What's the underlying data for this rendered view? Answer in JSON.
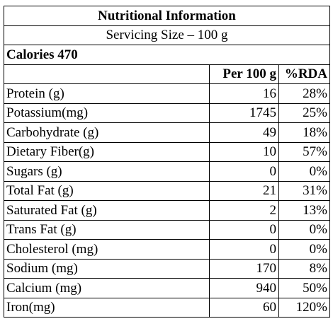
{
  "title": "Nutritional Information",
  "serving": "Servicing Size – 100 g",
  "calories": "Calories 470",
  "headers": {
    "per100g": "Per 100 g",
    "rda": "%RDA"
  },
  "rows": [
    {
      "name": "Protein (g)",
      "per100g": "16",
      "rda": "28%"
    },
    {
      "name": "Potassium(mg)",
      "per100g": "1745",
      "rda": "25%"
    },
    {
      "name": "Carbohydrate (g)",
      "per100g": "49",
      "rda": "18%"
    },
    {
      "name": "Dietary Fiber(g)",
      "per100g": "10",
      "rda": "57%"
    },
    {
      "name": "Sugars (g)",
      "per100g": "0",
      "rda": "0%"
    },
    {
      "name": "Total Fat (g)",
      "per100g": "21",
      "rda": "31%"
    },
    {
      "name": "Saturated Fat (g)",
      "per100g": "2",
      "rda": "13%"
    },
    {
      "name": "Trans Fat (g)",
      "per100g": "0",
      "rda": "0%"
    },
    {
      "name": "Cholesterol (mg)",
      "per100g": "0",
      "rda": "0%"
    },
    {
      "name": "Sodium (mg)",
      "per100g": "170",
      "rda": "8%"
    },
    {
      "name": "Calcium (mg)",
      "per100g": "940",
      "rda": "50%"
    },
    {
      "name": "Iron(mg)",
      "per100g": "60",
      "rda": "120%"
    }
  ]
}
